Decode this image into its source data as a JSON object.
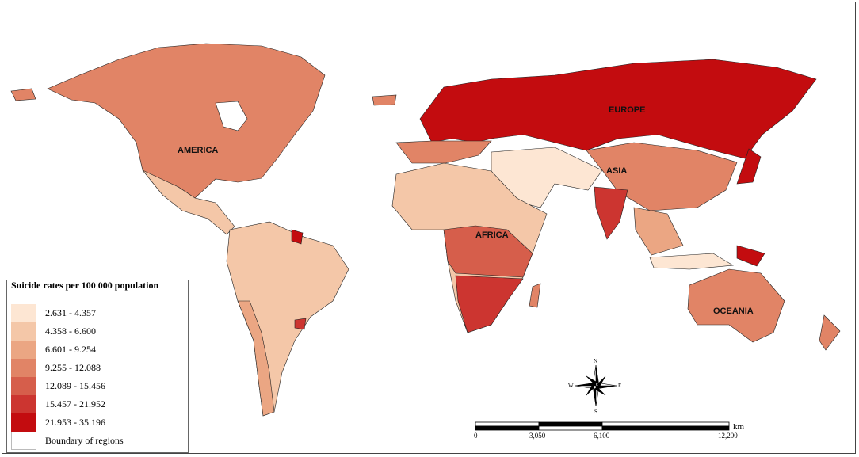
{
  "legend": {
    "title": "Suicide rates per 100 000 population",
    "classes": [
      {
        "label": "2.631 - 4.357",
        "color": "#fde6d3"
      },
      {
        "label": "4.358 - 6.600",
        "color": "#f4c7a8"
      },
      {
        "label": "6.601 - 9.254",
        "color": "#eba683"
      },
      {
        "label": "9.255 - 12.088",
        "color": "#e18466"
      },
      {
        "label": "12.089 - 15.456",
        "color": "#d65e4b"
      },
      {
        "label": "15.457 - 21.952",
        "color": "#cc3530"
      },
      {
        "label": "21.953 - 35.196",
        "color": "#c30c0f"
      }
    ],
    "boundary_label": "Boundary of regions"
  },
  "regions": {
    "america": "AMERICA",
    "europe": "EUROPE",
    "asia": "ASIA",
    "africa": "AFRICA",
    "oceania": "OCEANIA"
  },
  "compass": {
    "n": "N",
    "s": "S",
    "e": "E",
    "w": "W"
  },
  "scale_bar": {
    "ticks": [
      "0",
      "3,050",
      "6,100",
      "12,200"
    ],
    "unit": "km"
  }
}
